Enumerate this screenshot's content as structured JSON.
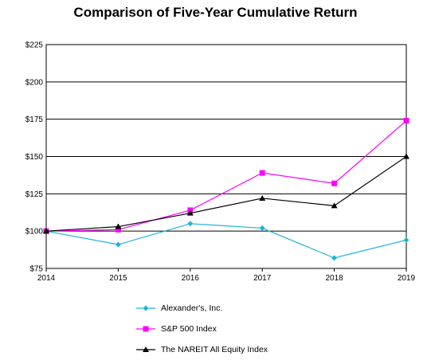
{
  "chart_data": {
    "type": "line",
    "title": "Comparison of Five-Year Cumulative Return",
    "xlabel": "",
    "ylabel": "",
    "x": [
      "2014",
      "2015",
      "2016",
      "2017",
      "2018",
      "2019"
    ],
    "ylim": [
      75,
      225
    ],
    "y_ticks": [
      "$75",
      "$100",
      "$125",
      "$150",
      "$175",
      "$200",
      "$225"
    ],
    "y_tick_values": [
      75,
      100,
      125,
      150,
      175,
      200,
      225
    ],
    "grid": true,
    "legend_position": "bottom",
    "series": [
      {
        "name": "Alexander's, Inc.",
        "color": "#1fb4d6",
        "marker": "diamond",
        "values": [
          100,
          91,
          105,
          102,
          82,
          94
        ]
      },
      {
        "name": "S&P 500 Index",
        "color": "#ff00ff",
        "marker": "square",
        "values": [
          100,
          101,
          114,
          139,
          132,
          174
        ]
      },
      {
        "name": "The NAREIT All Equity Index",
        "color": "#000000",
        "marker": "triangle",
        "values": [
          100,
          103,
          112,
          122,
          117,
          150
        ]
      }
    ]
  }
}
